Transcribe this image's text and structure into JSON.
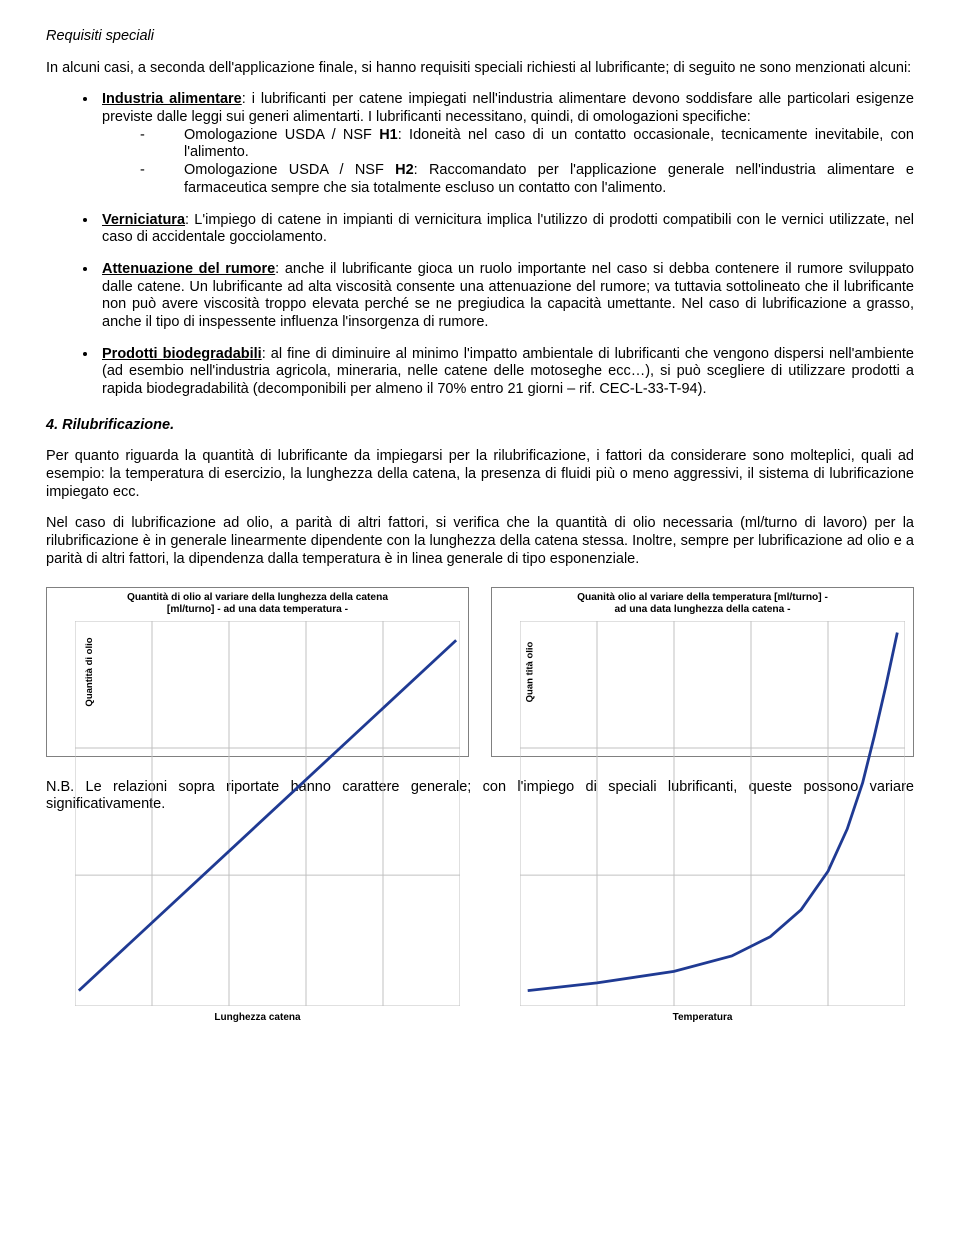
{
  "heading": "Requisiti speciali",
  "intro": "In alcuni casi, a seconda dell'applicazione finale, si hanno requisiti speciali richiesti al lubrificante; di seguito ne sono menzionati alcuni:",
  "bullets": {
    "industria": {
      "lead_u": "Industria alimentare",
      "lead_rest": ": i lubrificanti per catene impiegati nell'industria alimentare devono soddisfare alle particolari esigenze previste dalle leggi sui generi alimentarti. I lubrificanti necessitano, quindi, di omologazioni specifiche:",
      "h1_lead": "Omologazione USDA / NSF ",
      "h1_code": "H1",
      "h1_rest": ": Idoneità nel caso di un contatto occasionale, tecnicamente inevitabile, con l'alimento.",
      "h2_lead": "Omologazione USDA / NSF ",
      "h2_code": "H2",
      "h2_rest": ": Raccomandato per l'applicazione generale nell'industria alimentare e farmaceutica sempre che sia totalmente escluso un contatto con l'alimento."
    },
    "verniciatura": {
      "u": "Verniciatura",
      "rest": ": L'impiego di catene in impianti di vernicitura implica l'utilizzo di prodotti compatibili con le vernici utilizzate, nel caso di accidentale gocciolamento."
    },
    "rumore": {
      "u": "Attenuazione del rumore",
      "rest": ": anche il lubrificante gioca un ruolo importante nel caso si debba contenere il rumore sviluppato dalle catene. Un lubrificante ad alta viscosità consente una attenuazione del rumore; va tuttavia sottolineato che il lubrificante non può avere viscosità troppo elevata perché se ne pregiudica la capacità umettante. Nel caso di lubrificazione a grasso, anche il tipo di inspessente influenza l'insorgenza di rumore."
    },
    "biodeg": {
      "u": "Prodotti biodegradabili",
      "rest": ": al fine di diminuire al minimo l'impatto ambientale di lubrificanti che vengono dispersi nell'ambiente (ad esembio nell'industria agricola, mineraria, nelle catene delle motoseghe ecc…), si può scegliere di utilizzare prodotti a rapida biodegradabilità (decomponibili per almeno il 70% entro 21 giorni – rif. CEC-L-33-T-94)."
    }
  },
  "section4": {
    "title": "4. Rilubrificazione.",
    "p1": "Per quanto riguarda la quantità di lubrificante da impiegarsi per la rilubrificazione, i fattori da considerare sono molteplici, quali ad esempio: la temperatura di esercizio, la lunghezza della catena, la presenza di fluidi più o meno aggressivi, il sistema di lubrificazione impiegato ecc.",
    "p2": "Nel caso di lubrificazione ad olio, a parità di altri fattori, si verifica che la quantità di olio necessaria (ml/turno di lavoro) per la rilubrificazione è in generale linearmente dipendente con la lunghezza della catena stessa. Inoltre, sempre per lubrificazione ad olio e a parità di altri fattori, la dipendenza dalla temperatura è in linea generale di tipo esponenziale."
  },
  "chart1": {
    "type": "line",
    "title_l1": "Quantità di olio al variare della lunghezza della catena",
    "title_l2": "[ml/turno] - ad una data temperatura -",
    "ylabel": "Quantità di olio",
    "xlabel": "Lunghezza catena",
    "series_color": "#1f3a93",
    "grid_color": "#c0c0c0",
    "background": "#ffffff",
    "xlim": [
      0,
      100
    ],
    "ylim": [
      0,
      100
    ],
    "grid_xticks": [
      0,
      20,
      40,
      60,
      80,
      100
    ],
    "grid_yticks": [
      0,
      33,
      66,
      100
    ],
    "points": [
      [
        1,
        4
      ],
      [
        99,
        95
      ]
    ]
  },
  "chart2": {
    "type": "line",
    "title_l1": "Quanità olio al variare della temperatura [ml/turno]  -",
    "title_l2": "ad una data lunghezza della catena -",
    "ylabel": "Quan tità olio",
    "xlabel": "Temperatura",
    "series_color": "#1f3a93",
    "grid_color": "#c0c0c0",
    "background": "#ffffff",
    "xlim": [
      0,
      100
    ],
    "ylim": [
      0,
      100
    ],
    "grid_xticks": [
      0,
      20,
      40,
      60,
      80,
      100
    ],
    "grid_yticks": [
      0,
      33,
      66,
      100
    ],
    "points": [
      [
        2,
        4
      ],
      [
        20,
        6
      ],
      [
        40,
        9
      ],
      [
        55,
        13
      ],
      [
        65,
        18
      ],
      [
        73,
        25
      ],
      [
        80,
        35
      ],
      [
        85,
        46
      ],
      [
        89,
        58
      ],
      [
        92,
        70
      ],
      [
        95,
        83
      ],
      [
        98,
        97
      ]
    ]
  },
  "nb": "N.B. Le relazioni sopra riportate hanno carattere generale; con l'impiego di speciali lubrificanti, queste possono variare significativamente."
}
